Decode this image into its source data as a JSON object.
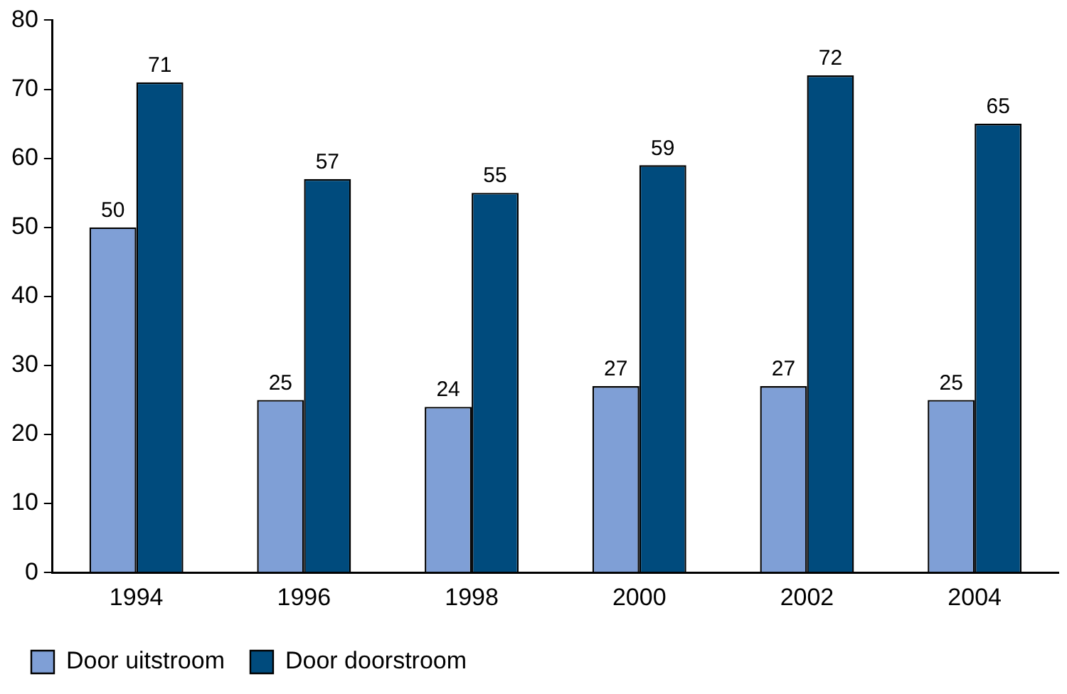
{
  "chart_data": {
    "type": "bar",
    "categories": [
      "1994",
      "1996",
      "1998",
      "2000",
      "2002",
      "2004"
    ],
    "series": [
      {
        "name": "Door uitstroom",
        "color": "#7f9fd6",
        "values": [
          50,
          25,
          24,
          27,
          27,
          25
        ]
      },
      {
        "name": "Door doorstroom",
        "color": "#004b7d",
        "values": [
          71,
          57,
          55,
          59,
          72,
          65
        ]
      }
    ],
    "ylim": [
      0,
      80
    ],
    "yticks": [
      0,
      10,
      20,
      30,
      40,
      50,
      60,
      70,
      80
    ],
    "grid": false,
    "legend": "bottom left",
    "data_labels": true
  }
}
